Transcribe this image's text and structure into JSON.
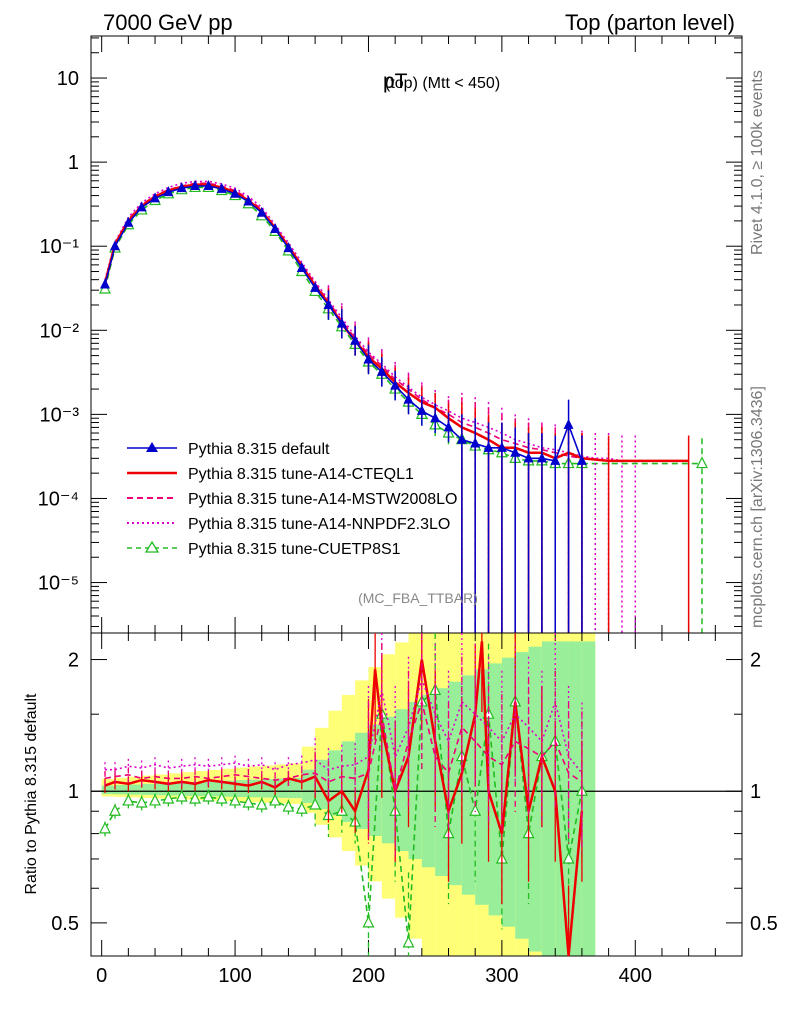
{
  "header": {
    "energy_label": "7000 GeV pp",
    "process_label": "Top (parton level)"
  },
  "side_labels": {
    "rivet": "Rivet 4.1.0, ≥ 100k events",
    "mcplots": "mcplots.cern.ch [arXiv:1306.3436]"
  },
  "chart_data": [
    {
      "type": "line",
      "panel": "main",
      "title": "pT (top) (Mtt < 450)",
      "title_main": "pT",
      "title_sub": "(top) (Mtt < 450)",
      "analysis_label": "(MC_FBA_TTBAR)",
      "xlim": [
        -8,
        480
      ],
      "ylim_log10": [
        -5.6,
        1.5
      ],
      "yscale": "log",
      "ytick_labels": [
        "10",
        "1",
        "10⁻¹",
        "10⁻²",
        "10⁻³",
        "10⁻⁴",
        "10⁻⁵"
      ],
      "ytick_exponents": [
        1,
        0,
        -1,
        -2,
        -3,
        -4,
        -5
      ],
      "legend_position": "lower-left",
      "series": [
        {
          "name": "Pythia 8.315 default",
          "color": "#0000cc",
          "style": "solid",
          "marker": "filled-triangle",
          "x": [
            2.5,
            10,
            20,
            30,
            40,
            50,
            60,
            70,
            80,
            90,
            100,
            110,
            120,
            130,
            140,
            150,
            160,
            170,
            180,
            190,
            200,
            210,
            220,
            230,
            240,
            250,
            260,
            270,
            280,
            290,
            300,
            310,
            320,
            330,
            340,
            350,
            360
          ],
          "y": [
            0.035,
            0.1,
            0.19,
            0.29,
            0.37,
            0.44,
            0.49,
            0.52,
            0.52,
            0.48,
            0.42,
            0.34,
            0.25,
            0.16,
            0.095,
            0.055,
            0.032,
            0.02,
            0.012,
            0.0075,
            0.0045,
            0.0032,
            0.0022,
            0.0015,
            0.0011,
            0.0009,
            0.0007,
            0.0005,
            0.00045,
            0.0004,
            0.0004,
            0.00035,
            0.0003,
            0.0003,
            0.00028,
            0.00075,
            0.00028
          ]
        },
        {
          "name": "Pythia 8.315 tune-A14-CTEQL1",
          "color": "#ee0000",
          "style": "solid",
          "marker": "none",
          "x": [
            2.5,
            10,
            20,
            30,
            40,
            50,
            60,
            70,
            80,
            90,
            100,
            110,
            120,
            130,
            140,
            150,
            160,
            170,
            180,
            190,
            200,
            210,
            220,
            230,
            240,
            250,
            260,
            270,
            280,
            290,
            300,
            310,
            320,
            330,
            340,
            350,
            360,
            380,
            440
          ],
          "y": [
            0.036,
            0.105,
            0.2,
            0.3,
            0.39,
            0.46,
            0.51,
            0.54,
            0.54,
            0.5,
            0.44,
            0.35,
            0.26,
            0.165,
            0.1,
            0.058,
            0.034,
            0.021,
            0.012,
            0.0075,
            0.0048,
            0.0035,
            0.0024,
            0.0018,
            0.0014,
            0.0012,
            0.0009,
            0.0007,
            0.0006,
            0.0005,
            0.0004,
            0.0004,
            0.00035,
            0.00035,
            0.0003,
            0.00035,
            0.0003,
            0.00028,
            0.00028
          ]
        },
        {
          "name": "Pythia 8.315 tune-A14-MSTW2008LO",
          "color": "#ee0077",
          "style": "dashed",
          "marker": "none",
          "x": [
            2.5,
            10,
            20,
            30,
            40,
            50,
            60,
            70,
            80,
            90,
            100,
            110,
            120,
            130,
            140,
            150,
            160,
            170,
            180,
            190,
            200,
            210,
            220,
            230,
            240,
            250,
            260,
            270,
            280,
            290,
            300,
            310,
            320,
            330,
            340,
            350,
            360
          ],
          "y": [
            0.038,
            0.108,
            0.21,
            0.31,
            0.4,
            0.47,
            0.52,
            0.56,
            0.56,
            0.52,
            0.46,
            0.37,
            0.27,
            0.17,
            0.102,
            0.06,
            0.036,
            0.022,
            0.013,
            0.008,
            0.0052,
            0.0038,
            0.0026,
            0.002,
            0.0015,
            0.0012,
            0.001,
            0.0008,
            0.0007,
            0.0006,
            0.0005,
            0.00045,
            0.0004,
            0.00038,
            0.00035,
            0.00032,
            0.0003
          ]
        },
        {
          "name": "Pythia 8.315 tune-A14-NNPDF2.3LO",
          "color": "#dd00cc",
          "style": "dotted",
          "marker": "none",
          "x": [
            2.5,
            10,
            20,
            30,
            40,
            50,
            60,
            70,
            80,
            90,
            100,
            110,
            120,
            130,
            140,
            150,
            160,
            170,
            180,
            190,
            200,
            210,
            220,
            230,
            240,
            250,
            260,
            270,
            280,
            290,
            300,
            310,
            320,
            330,
            340,
            350,
            360,
            370,
            380,
            390,
            400
          ],
          "y": [
            0.04,
            0.112,
            0.22,
            0.33,
            0.42,
            0.5,
            0.56,
            0.59,
            0.59,
            0.55,
            0.49,
            0.39,
            0.29,
            0.18,
            0.11,
            0.064,
            0.038,
            0.023,
            0.014,
            0.0085,
            0.0055,
            0.004,
            0.0028,
            0.0021,
            0.0016,
            0.0013,
            0.0011,
            0.0009,
            0.0008,
            0.0007,
            0.0006,
            0.0005,
            0.00045,
            0.0004,
            0.00038,
            0.00035,
            0.00032,
            0.0003,
            0.0003,
            0.00028,
            0.00028
          ]
        },
        {
          "name": "Pythia 8.315 tune-CUETP8S1",
          "color": "#22bb22",
          "style": "dashed",
          "marker": "open-triangle",
          "x": [
            2.5,
            10,
            20,
            30,
            40,
            50,
            60,
            70,
            80,
            90,
            100,
            110,
            120,
            130,
            140,
            150,
            160,
            170,
            180,
            190,
            200,
            210,
            220,
            230,
            240,
            250,
            260,
            270,
            280,
            290,
            300,
            310,
            320,
            330,
            340,
            350,
            360,
            450
          ],
          "y": [
            0.031,
            0.095,
            0.18,
            0.27,
            0.35,
            0.42,
            0.47,
            0.5,
            0.5,
            0.46,
            0.4,
            0.32,
            0.23,
            0.15,
            0.088,
            0.05,
            0.029,
            0.018,
            0.011,
            0.0068,
            0.0042,
            0.003,
            0.002,
            0.0014,
            0.001,
            0.00075,
            0.0006,
            0.0005,
            0.00042,
            0.00038,
            0.00035,
            0.0003,
            0.00028,
            0.00028,
            0.00026,
            0.00026,
            0.00026,
            0.00026
          ]
        }
      ]
    },
    {
      "type": "line",
      "panel": "ratio",
      "ylabel": "Ratio to Pythia 8.315 default",
      "xlim": [
        -8,
        480
      ],
      "ylim": [
        0.42,
        2.3
      ],
      "yscale": "log",
      "ytick_labels": [
        "2",
        "1",
        "0.5"
      ],
      "ytick_values": [
        2,
        1,
        0.5
      ],
      "xtick_labels": [
        "0",
        "100",
        "200",
        "300",
        "400"
      ],
      "xtick_values": [
        0,
        100,
        200,
        300,
        400
      ],
      "reference_line": 1,
      "series": [
        {
          "name": "Pythia 8.315 tune-A14-CTEQL1",
          "color": "#ee0000",
          "x": [
            2.5,
            10,
            20,
            30,
            40,
            50,
            60,
            70,
            80,
            90,
            100,
            110,
            120,
            130,
            140,
            150,
            160,
            170,
            180,
            190,
            200,
            205,
            210,
            220,
            230,
            240,
            250,
            260,
            270,
            280,
            285,
            290,
            300,
            310,
            320,
            330,
            340,
            350,
            360
          ],
          "y": [
            1.03,
            1.05,
            1.04,
            1.06,
            1.05,
            1.04,
            1.05,
            1.04,
            1.06,
            1.05,
            1.04,
            1.03,
            1.05,
            1.02,
            1.07,
            1.05,
            1.08,
            0.95,
            1.0,
            0.9,
            1.12,
            1.9,
            1.4,
            1.0,
            1.2,
            2.0,
            1.3,
            0.9,
            1.1,
            1.5,
            2.2,
            1.0,
            0.8,
            1.6,
            0.9,
            1.2,
            1.0,
            0.42,
            0.9
          ]
        },
        {
          "name": "Pythia 8.315 tune-A14-MSTW2008LO",
          "color": "#ee0077",
          "x": [
            2.5,
            10,
            20,
            30,
            40,
            50,
            60,
            70,
            80,
            90,
            100,
            110,
            120,
            130,
            140,
            150,
            160,
            170,
            180,
            190,
            200,
            210,
            220,
            230,
            240,
            250,
            260,
            270,
            280,
            290,
            300,
            310,
            320,
            330,
            340,
            350,
            360
          ],
          "y": [
            1.07,
            1.08,
            1.09,
            1.07,
            1.08,
            1.07,
            1.07,
            1.08,
            1.07,
            1.08,
            1.09,
            1.08,
            1.07,
            1.06,
            1.07,
            1.09,
            1.1,
            1.05,
            1.08,
            1.07,
            1.1,
            1.5,
            1.0,
            1.3,
            1.6,
            1.2,
            1.1,
            1.4,
            1.3,
            1.2,
            1.15,
            1.3,
            1.25,
            1.2,
            1.3,
            1.1,
            1.05
          ]
        },
        {
          "name": "Pythia 8.315 tune-A14-NNPDF2.3LO",
          "color": "#dd00cc",
          "x": [
            2.5,
            10,
            20,
            30,
            40,
            50,
            60,
            70,
            80,
            90,
            100,
            110,
            120,
            130,
            140,
            150,
            160,
            170,
            180,
            190,
            200,
            210,
            220,
            230,
            240,
            250,
            260,
            270,
            280,
            290,
            300,
            310,
            320,
            330,
            340,
            350,
            360
          ],
          "y": [
            1.12,
            1.12,
            1.14,
            1.13,
            1.15,
            1.13,
            1.14,
            1.15,
            1.14,
            1.15,
            1.16,
            1.14,
            1.15,
            1.12,
            1.15,
            1.16,
            1.18,
            1.12,
            1.14,
            1.15,
            1.2,
            1.7,
            1.2,
            1.4,
            1.8,
            1.5,
            1.3,
            1.6,
            1.5,
            1.4,
            1.3,
            1.5,
            1.4,
            1.3,
            1.6,
            1.2,
            1.1
          ]
        },
        {
          "name": "Pythia 8.315 tune-CUETP8S1",
          "color": "#22bb22",
          "x": [
            2.5,
            10,
            20,
            30,
            40,
            50,
            60,
            70,
            80,
            90,
            100,
            110,
            120,
            130,
            140,
            150,
            160,
            170,
            180,
            190,
            200,
            210,
            220,
            230,
            240,
            250,
            260,
            270,
            280,
            290,
            300,
            310,
            320,
            330,
            340,
            350,
            360
          ],
          "y": [
            0.82,
            0.9,
            0.95,
            0.94,
            0.95,
            0.96,
            0.97,
            0.96,
            0.97,
            0.96,
            0.95,
            0.94,
            0.93,
            0.95,
            0.92,
            0.91,
            0.93,
            0.88,
            0.9,
            0.85,
            0.5,
            1.5,
            0.9,
            0.45,
            1.6,
            1.7,
            0.8,
            1.2,
            0.9,
            1.5,
            0.7,
            1.6,
            0.8,
            1.2,
            1.3,
            0.7,
            1.0
          ]
        }
      ]
    }
  ]
}
